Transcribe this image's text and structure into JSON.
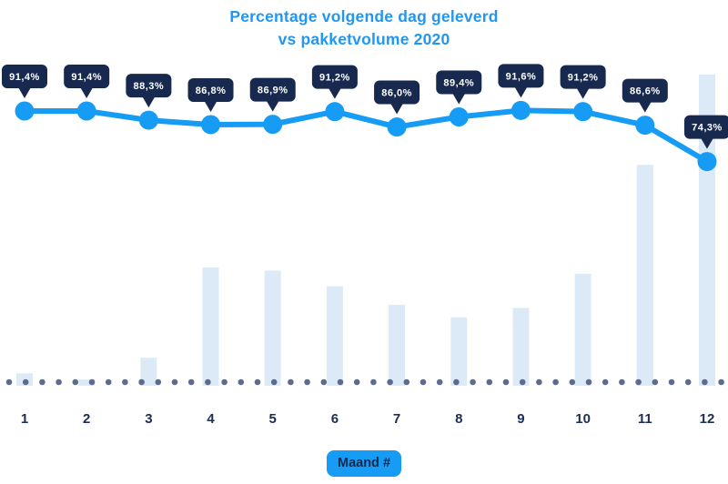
{
  "title": {
    "line1": "Percentage volgende dag geleverd",
    "line2": "vs pakketvolume 2020"
  },
  "x_axis": {
    "title_badge": "Maand #"
  },
  "colors": {
    "accent_blue": "#169CF5",
    "title_blue": "#2196F3",
    "tooltip_navy": "#17294E",
    "tooltip_text": "#FFFFFF",
    "axis_navy": "#1B2D55",
    "bar_fill": "#DCEAF8",
    "dot_fill": "#5B6C8F",
    "background": "#FFFFFF"
  },
  "chart_data": {
    "type": "combo",
    "title": "Percentage volgende dag geleverd vs pakketvolume 2020",
    "categories": [
      "1",
      "2",
      "3",
      "4",
      "5",
      "6",
      "7",
      "8",
      "9",
      "10",
      "11",
      "12"
    ],
    "xlabel": "Maand #",
    "legend": "none",
    "gridlines": false,
    "y_axis_visible": false,
    "baseline_style": "dotted",
    "series": [
      {
        "name": "Percentage volgende dag geleverd",
        "type": "line",
        "unit": "%",
        "values": [
          91.4,
          91.4,
          88.3,
          86.8,
          86.9,
          91.2,
          86.0,
          89.4,
          91.6,
          91.2,
          86.6,
          74.3
        ],
        "point_labels": [
          "91,4%",
          "91,4%",
          "88,3%",
          "86,8%",
          "86,9%",
          "91,2%",
          "86,0%",
          "89,4%",
          "91,6%",
          "91,2%",
          "86,6%",
          "74,3%"
        ]
      },
      {
        "name": "Pakketvolume 2020",
        "type": "bar",
        "values_scale": "relative, max month = 100",
        "values": [
          4,
          2,
          9,
          38,
          37,
          32,
          26,
          22,
          25,
          36,
          71,
          100
        ]
      }
    ]
  }
}
